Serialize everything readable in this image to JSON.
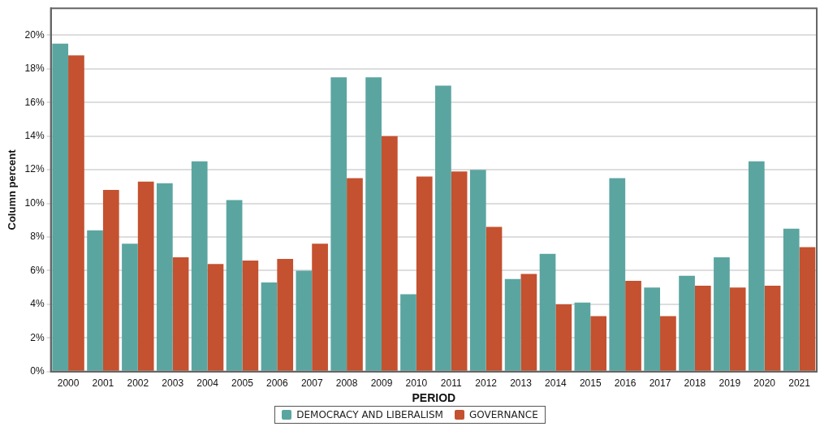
{
  "chart_data": {
    "type": "bar",
    "xlabel": "PERIOD",
    "ylabel": "Column percent",
    "categories": [
      "2000",
      "2001",
      "2002",
      "2003",
      "2004",
      "2005",
      "2006",
      "2007",
      "2008",
      "2009",
      "2010",
      "2011",
      "2012",
      "2013",
      "2014",
      "2015",
      "2016",
      "2017",
      "2018",
      "2019",
      "2020",
      "2021"
    ],
    "series": [
      {
        "name": "DEMOCRACY AND LIBERALISM",
        "color": "#5ba5a1",
        "values": [
          19.5,
          8.4,
          7.6,
          11.2,
          12.5,
          10.2,
          5.3,
          6.0,
          17.5,
          17.5,
          4.6,
          17.0,
          12.0,
          5.5,
          7.0,
          4.1,
          11.5,
          5.0,
          5.7,
          6.8,
          12.5,
          8.5
        ]
      },
      {
        "name": "GOVERNANCE",
        "color": "#c4512f",
        "values": [
          18.8,
          10.8,
          11.3,
          6.8,
          6.4,
          6.6,
          6.7,
          7.6,
          11.5,
          14.0,
          11.6,
          11.9,
          8.6,
          5.8,
          4.0,
          3.3,
          5.4,
          3.3,
          5.1,
          5.0,
          5.1,
          7.4
        ]
      }
    ],
    "ylim": [
      0,
      21.6
    ],
    "yticks": [
      {
        "value": 0,
        "label": "0%"
      },
      {
        "value": 2,
        "label": "2%"
      },
      {
        "value": 4,
        "label": "4%"
      },
      {
        "value": 6,
        "label": "6%"
      },
      {
        "value": 8,
        "label": "8%"
      },
      {
        "value": 10,
        "label": "10%"
      },
      {
        "value": 12,
        "label": "12%"
      },
      {
        "value": 14,
        "label": "14%"
      },
      {
        "value": 16,
        "label": "16%"
      },
      {
        "value": 18,
        "label": "18%"
      },
      {
        "value": 20,
        "label": "20%"
      }
    ],
    "grid": "y",
    "legend": "bottom"
  }
}
